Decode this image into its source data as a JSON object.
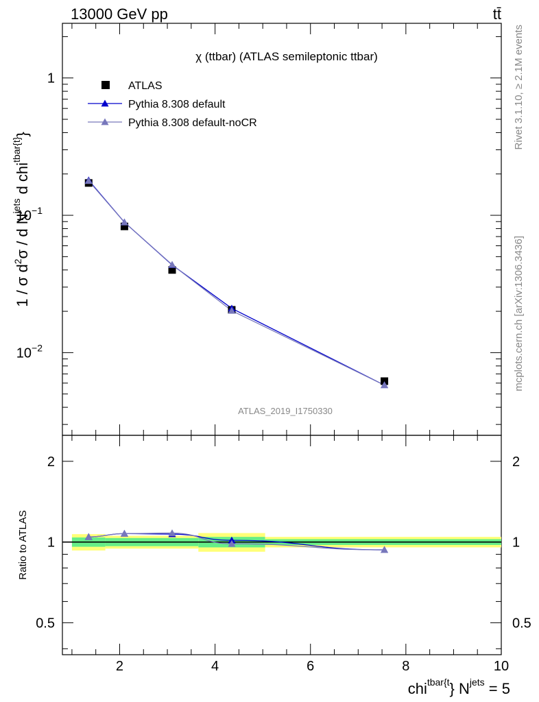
{
  "header": {
    "left": "13000 GeV pp",
    "right": "tt̄"
  },
  "side_labels": {
    "rivet": "Rivet 3.1.10, ≥ 2.1M events",
    "mcplots": "mcplots.cern.ch [arXiv:1306.3436]"
  },
  "watermark": "ATLAS_2019_I1750330",
  "chart_data": [
    {
      "type": "line",
      "title": "χ (ttbar) (ATLAS semileptonic ttbar)",
      "ylabel": "1 / σ d²σ / d N^jets d chi^{tbar{t}}",
      "log_y": true,
      "xlim": [
        0.8,
        10.0
      ],
      "ylim": [
        0.0025,
        2.5
      ],
      "y_ticks": [
        {
          "value": 0.01,
          "label": "10",
          "exp": "−2"
        },
        {
          "value": 0.1,
          "label": "10",
          "exp": "−1"
        },
        {
          "value": 1,
          "label": "1",
          "exp": ""
        }
      ],
      "legend_position": "top-left",
      "series": [
        {
          "name": "ATLAS",
          "marker": "square",
          "color": "#000000",
          "x": [
            1.35,
            2.1,
            3.1,
            4.35,
            7.55
          ],
          "y": [
            0.172,
            0.083,
            0.04,
            0.0205,
            0.0062
          ]
        },
        {
          "name": "Pythia 8.308 default",
          "marker": "triangle",
          "color": "#0000cc",
          "x": [
            1.35,
            2.1,
            3.1,
            4.35,
            7.55
          ],
          "y": [
            0.18,
            0.089,
            0.0435,
            0.021,
            0.0058
          ]
        },
        {
          "name": "Pythia 8.308 default-noCR",
          "marker": "triangle",
          "color": "#7777bb",
          "x": [
            1.35,
            2.1,
            3.1,
            4.35,
            7.55
          ],
          "y": [
            0.178,
            0.089,
            0.0437,
            0.0202,
            0.0058
          ]
        }
      ]
    },
    {
      "type": "line",
      "ylabel": "Ratio to ATLAS",
      "xlabel_main": "chi",
      "xlabel_sup1": "tbar{t",
      "xlabel_mid": "} N",
      "xlabel_sup2": "jets",
      "xlabel_end": " = 5",
      "xlim": [
        0.8,
        10.0
      ],
      "ylim": [
        0.38,
        2.5
      ],
      "x_ticks": [
        2,
        4,
        6,
        8,
        10
      ],
      "y_ticks": [
        0.5,
        1,
        2
      ],
      "bands": {
        "colors": {
          "inner": "#66ee88",
          "outer": "#ffff77"
        },
        "bins": [
          {
            "x0": 1.0,
            "x1": 1.7,
            "inner": [
              0.96,
              1.04
            ],
            "outer": [
              0.93,
              1.07
            ]
          },
          {
            "x0": 1.7,
            "x1": 3.65,
            "inner": [
              0.965,
              1.035
            ],
            "outer": [
              0.945,
              1.055
            ]
          },
          {
            "x0": 3.65,
            "x1": 5.05,
            "inner": [
              0.955,
              1.045
            ],
            "outer": [
              0.92,
              1.08
            ]
          },
          {
            "x0": 5.05,
            "x1": 10.0,
            "inner": [
              0.975,
              1.025
            ],
            "outer": [
              0.955,
              1.045
            ]
          }
        ]
      },
      "series": [
        {
          "name": "Pythia 8.308 default",
          "color": "#0000cc",
          "x": [
            1.35,
            2.1,
            3.1,
            4.35,
            7.55
          ],
          "y": [
            1.045,
            1.075,
            1.07,
            1.015,
            0.935
          ]
        },
        {
          "name": "Pythia 8.308 default-noCR",
          "color": "#7777bb",
          "x": [
            1.35,
            2.1,
            3.1,
            4.35,
            7.55
          ],
          "y": [
            1.045,
            1.075,
            1.08,
            0.985,
            0.935
          ]
        }
      ]
    }
  ]
}
